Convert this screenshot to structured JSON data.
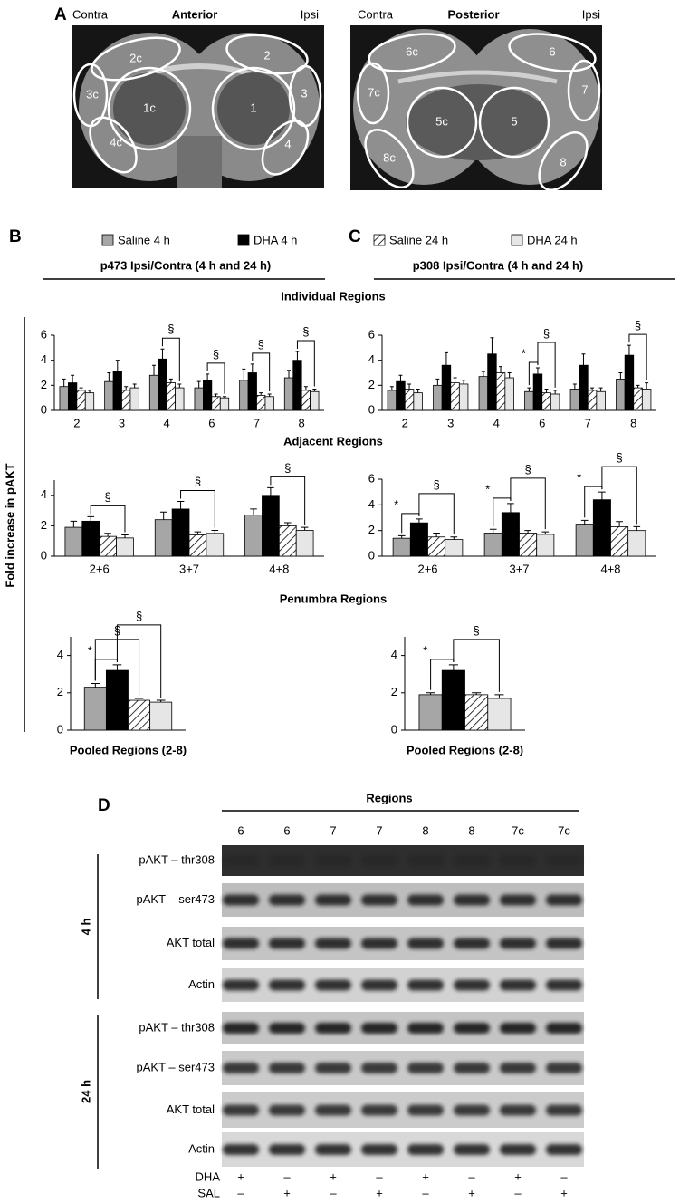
{
  "panel_labels": [
    "A",
    "B",
    "C",
    "D"
  ],
  "panel_a": {
    "left": {
      "contra": "Contra",
      "title": "Anterior",
      "ipsi": "Ipsi",
      "regions": [
        "2c",
        "2",
        "3c",
        "3",
        "1c",
        "1",
        "4c",
        "4"
      ]
    },
    "right": {
      "contra": "Contra",
      "title": "Posterior",
      "ipsi": "Ipsi",
      "regions": [
        "6c",
        "6",
        "7c",
        "7",
        "5c",
        "5",
        "8c",
        "8"
      ]
    }
  },
  "legend": [
    {
      "name": "Saline 4 h",
      "color": "#a6a6a6"
    },
    {
      "name": "DHA 4 h",
      "color": "#000000"
    },
    {
      "name": "Saline 24 h",
      "color": "#ffffff",
      "hatch": true
    },
    {
      "name": "DHA 24 h",
      "color": "#e6e6e6"
    }
  ],
  "subtitles": [
    "p473 Ipsi/Contra (4 h and 24 h)",
    "p308 Ipsi/Contra (4 h and 24 h)"
  ],
  "headings": [
    "Individual Regions",
    "Adjacent Regions",
    "Penumbra Regions"
  ],
  "y_label": "Fold increase in pAKT",
  "chart_data": [
    {
      "type": "bar",
      "categories": [
        "2",
        "3",
        "4",
        "6",
        "7",
        "8"
      ],
      "ylim": [
        0,
        6
      ],
      "yticks": [
        0,
        2,
        4,
        6
      ],
      "series": [
        {
          "values": [
            1.9,
            2.3,
            2.8,
            1.8,
            2.4,
            2.6
          ],
          "errors": [
            0.6,
            0.7,
            0.8,
            0.5,
            0.9,
            0.6
          ]
        },
        {
          "values": [
            2.2,
            3.1,
            4.1,
            2.4,
            3.0,
            4.0
          ],
          "errors": [
            0.6,
            0.9,
            0.8,
            0.5,
            0.7,
            0.7
          ]
        },
        {
          "values": [
            1.6,
            1.6,
            2.2,
            1.1,
            1.2,
            1.6
          ],
          "errors": [
            0.2,
            0.3,
            0.3,
            0.2,
            0.2,
            0.3
          ]
        },
        {
          "values": [
            1.4,
            1.8,
            1.8,
            1.0,
            1.1,
            1.5
          ],
          "errors": [
            0.2,
            0.3,
            0.3,
            0.1,
            0.2,
            0.2
          ]
        }
      ],
      "annotations": [
        {
          "label": "§",
          "category": "4",
          "series": [
            1,
            3
          ]
        },
        {
          "label": "§",
          "category": "6",
          "series": [
            1,
            3
          ]
        },
        {
          "label": "§",
          "category": "7",
          "series": [
            1,
            3
          ]
        },
        {
          "label": "§",
          "category": "8",
          "series": [
            1,
            3
          ]
        }
      ]
    },
    {
      "type": "bar",
      "categories": [
        "2",
        "3",
        "4",
        "6",
        "7",
        "8"
      ],
      "ylim": [
        0,
        6
      ],
      "yticks": [
        0,
        2,
        4,
        6
      ],
      "series": [
        {
          "values": [
            1.6,
            2.0,
            2.7,
            1.5,
            1.7,
            2.5
          ],
          "errors": [
            0.3,
            0.5,
            0.4,
            0.3,
            0.4,
            0.5
          ]
        },
        {
          "values": [
            2.3,
            3.6,
            4.5,
            2.9,
            3.6,
            4.4
          ],
          "errors": [
            0.5,
            1.0,
            1.3,
            0.5,
            0.9,
            0.8
          ]
        },
        {
          "values": [
            1.7,
            2.2,
            3.0,
            1.4,
            1.6,
            1.8
          ],
          "errors": [
            0.4,
            0.4,
            0.5,
            0.3,
            0.2,
            0.2
          ]
        },
        {
          "values": [
            1.4,
            2.1,
            2.6,
            1.3,
            1.5,
            1.7
          ],
          "errors": [
            0.3,
            0.3,
            0.4,
            0.3,
            0.3,
            0.5
          ]
        }
      ],
      "annotations": [
        {
          "label": "*",
          "category": "6",
          "series": [
            0,
            1
          ]
        },
        {
          "label": "§",
          "category": "6",
          "series": [
            1,
            3
          ]
        },
        {
          "label": "§",
          "category": "8",
          "series": [
            1,
            3
          ]
        }
      ]
    },
    {
      "type": "bar",
      "categories": [
        "2+6",
        "3+7",
        "4+8"
      ],
      "ylim": [
        0,
        5
      ],
      "yticks": [
        0,
        2,
        4
      ],
      "series": [
        {
          "values": [
            1.9,
            2.4,
            2.7
          ],
          "errors": [
            0.4,
            0.5,
            0.4
          ]
        },
        {
          "values": [
            2.3,
            3.1,
            4.0
          ],
          "errors": [
            0.3,
            0.5,
            0.5
          ]
        },
        {
          "values": [
            1.3,
            1.4,
            2.0
          ],
          "errors": [
            0.2,
            0.2,
            0.2
          ]
        },
        {
          "values": [
            1.2,
            1.5,
            1.7
          ],
          "errors": [
            0.2,
            0.2,
            0.2
          ]
        }
      ],
      "annotations": [
        {
          "label": "§",
          "category": "2+6",
          "series": [
            1,
            3
          ]
        },
        {
          "label": "§",
          "category": "3+7",
          "series": [
            1,
            3
          ]
        },
        {
          "label": "§",
          "category": "4+8",
          "series": [
            1,
            3
          ]
        }
      ]
    },
    {
      "type": "bar",
      "categories": [
        "2+6",
        "3+7",
        "4+8"
      ],
      "ylim": [
        0,
        6
      ],
      "yticks": [
        0,
        2,
        4,
        6
      ],
      "series": [
        {
          "values": [
            1.4,
            1.8,
            2.5
          ],
          "errors": [
            0.2,
            0.3,
            0.3
          ]
        },
        {
          "values": [
            2.6,
            3.4,
            4.4
          ],
          "errors": [
            0.3,
            0.7,
            0.6
          ]
        },
        {
          "values": [
            1.5,
            1.8,
            2.3
          ],
          "errors": [
            0.3,
            0.2,
            0.4
          ]
        },
        {
          "values": [
            1.3,
            1.7,
            2.0
          ],
          "errors": [
            0.2,
            0.2,
            0.3
          ]
        }
      ],
      "annotations": [
        {
          "label": "*",
          "category": "2+6",
          "series": [
            0,
            1
          ]
        },
        {
          "label": "§",
          "category": "2+6",
          "series": [
            1,
            3
          ]
        },
        {
          "label": "*",
          "category": "3+7",
          "series": [
            0,
            1
          ]
        },
        {
          "label": "§",
          "category": "3+7",
          "series": [
            1,
            3
          ]
        },
        {
          "label": "*",
          "category": "4+8",
          "series": [
            0,
            1
          ]
        },
        {
          "label": "§",
          "category": "4+8",
          "series": [
            1,
            3
          ]
        }
      ]
    },
    {
      "type": "bar",
      "categories": [
        null
      ],
      "xlabel": "Pooled Regions (2-8)",
      "ylim": [
        0,
        5
      ],
      "yticks": [
        0,
        2,
        4
      ],
      "series": [
        {
          "values": [
            2.3
          ],
          "errors": [
            0.2
          ]
        },
        {
          "values": [
            3.2
          ],
          "errors": [
            0.3
          ]
        },
        {
          "values": [
            1.6
          ],
          "errors": [
            0.1
          ]
        },
        {
          "values": [
            1.5
          ],
          "errors": [
            0.1
          ]
        }
      ],
      "annotations": [
        {
          "label": "*",
          "category": null,
          "series": [
            0,
            1
          ]
        },
        {
          "label": "§",
          "category": null,
          "series": [
            0,
            2
          ]
        },
        {
          "label": "§",
          "category": null,
          "series": [
            1,
            3
          ]
        }
      ]
    },
    {
      "type": "bar",
      "categories": [
        null
      ],
      "xlabel": "Pooled Regions (2-8)",
      "ylim": [
        0,
        5
      ],
      "yticks": [
        0,
        2,
        4
      ],
      "series": [
        {
          "values": [
            1.9
          ],
          "errors": [
            0.1
          ]
        },
        {
          "values": [
            3.2
          ],
          "errors": [
            0.3
          ]
        },
        {
          "values": [
            1.9
          ],
          "errors": [
            0.1
          ]
        },
        {
          "values": [
            1.7
          ],
          "errors": [
            0.2
          ]
        }
      ],
      "annotations": [
        {
          "label": "*",
          "category": null,
          "series": [
            0,
            1
          ]
        },
        {
          "label": "§",
          "category": null,
          "series": [
            1,
            3
          ]
        }
      ]
    }
  ],
  "blot": {
    "title": "Regions",
    "lanes": [
      "6",
      "6",
      "7",
      "7",
      "8",
      "8",
      "7c",
      "7c"
    ],
    "groups": [
      {
        "label": "4 h",
        "rows": [
          "pAKT – thr308",
          "pAKT – ser473",
          "AKT total",
          "Actin"
        ]
      },
      {
        "label": "24 h",
        "rows": [
          "pAKT – thr308",
          "pAKT – ser473",
          "AKT total",
          "Actin"
        ]
      }
    ],
    "treatments": [
      {
        "label": "DHA",
        "signs": [
          "+",
          "–",
          "+",
          "–",
          "+",
          "–",
          "+",
          "–"
        ]
      },
      {
        "label": "SAL",
        "signs": [
          "–",
          "+",
          "–",
          "+",
          "–",
          "+",
          "–",
          "+"
        ]
      }
    ]
  }
}
